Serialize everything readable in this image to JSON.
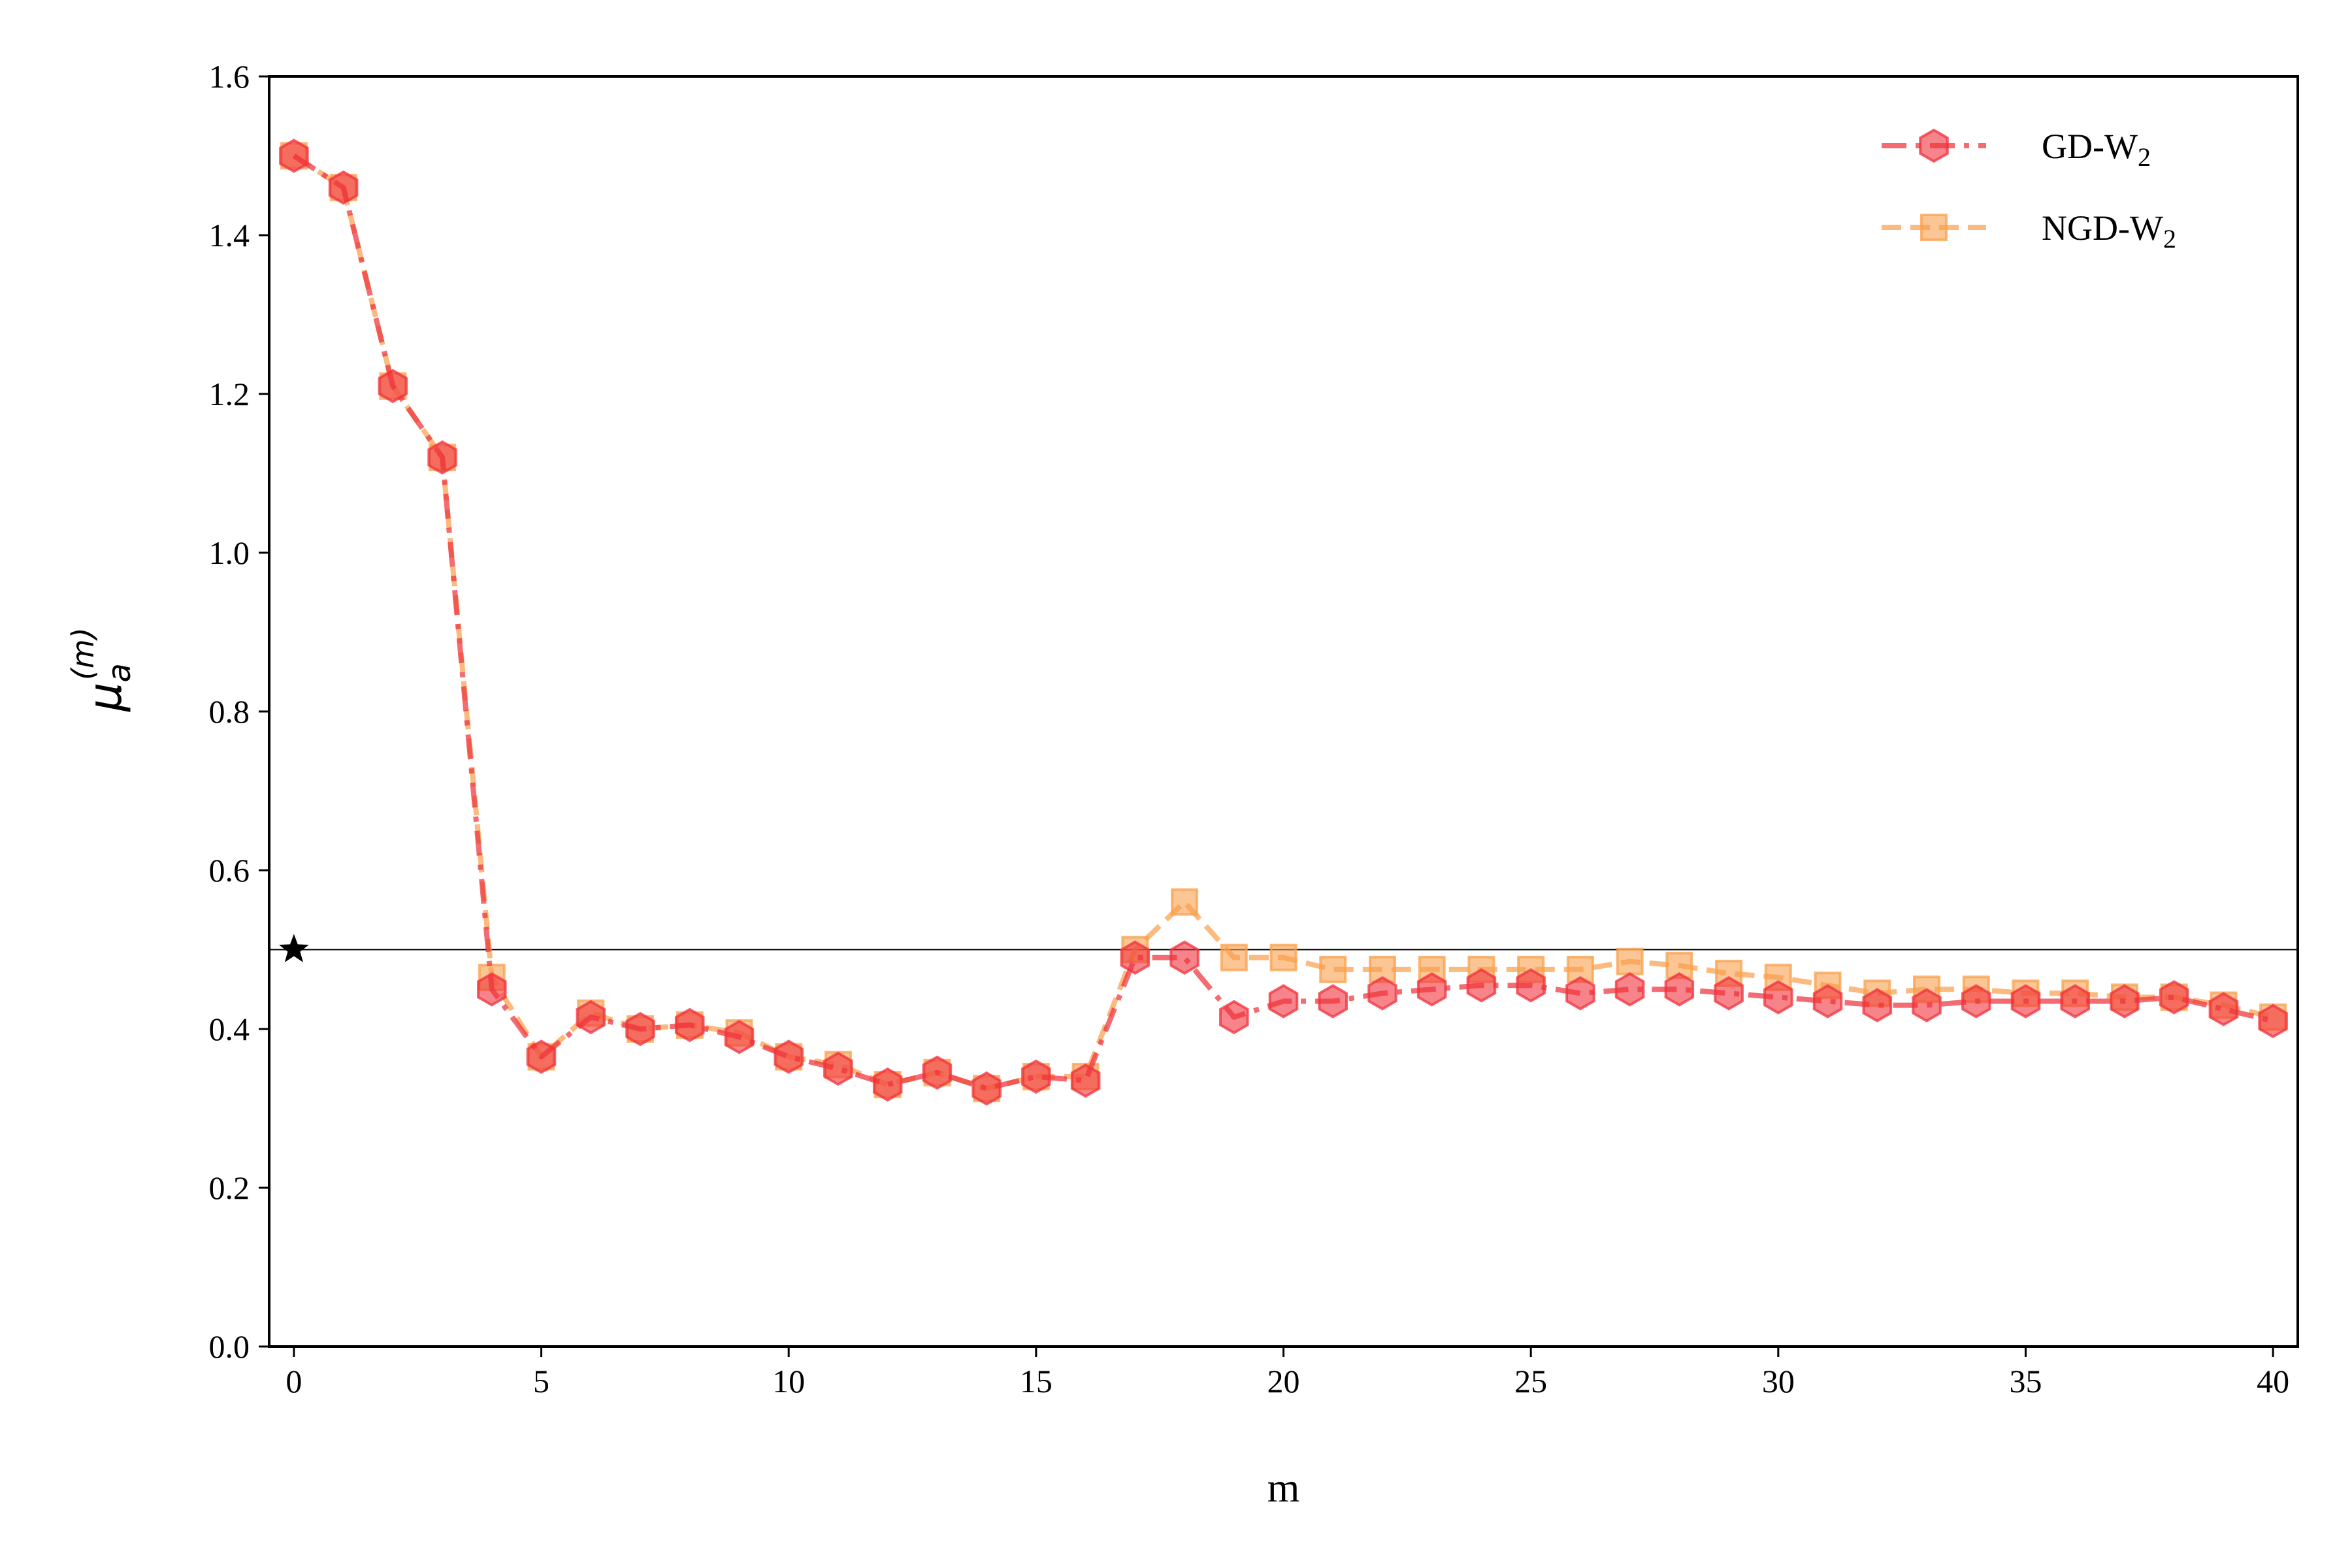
{
  "chart_data": {
    "type": "line",
    "xlabel": "m",
    "ylabel": {
      "base": "μ",
      "subscript": "a",
      "superscript": "(m)"
    },
    "xlim": [
      -0.5,
      40.5
    ],
    "ylim": [
      0.0,
      1.6
    ],
    "xticks": [
      "0",
      "5",
      "10",
      "15",
      "20",
      "25",
      "30",
      "35",
      "40"
    ],
    "yticks": [
      "0.0",
      "0.2",
      "0.4",
      "0.6",
      "0.8",
      "1.0",
      "1.2",
      "1.4",
      "1.6"
    ],
    "grid": false,
    "legend_position": "top-right",
    "reference_line": {
      "y": 0.5,
      "color": "#000000"
    },
    "true_value_marker": {
      "x": 0,
      "y": 0.5,
      "symbol": "star",
      "color": "#000000"
    },
    "x": [
      0,
      1,
      2,
      3,
      4,
      5,
      6,
      7,
      8,
      9,
      10,
      11,
      12,
      13,
      14,
      15,
      16,
      17,
      18,
      19,
      20,
      21,
      22,
      23,
      24,
      25,
      26,
      27,
      28,
      29,
      30,
      31,
      32,
      33,
      34,
      35,
      36,
      37,
      38,
      39,
      40
    ],
    "series": [
      {
        "name": "GD-W",
        "name_subscript": "2",
        "color": "#f0323c",
        "marker": "hexagon",
        "linestyle": "dashdot",
        "values": [
          1.5,
          1.46,
          1.21,
          1.12,
          0.45,
          0.365,
          0.415,
          0.4,
          0.405,
          0.39,
          0.365,
          0.35,
          0.33,
          0.345,
          0.325,
          0.34,
          0.335,
          0.49,
          0.49,
          0.415,
          0.435,
          0.435,
          0.445,
          0.45,
          0.455,
          0.455,
          0.445,
          0.45,
          0.45,
          0.445,
          0.44,
          0.435,
          0.43,
          0.43,
          0.435,
          0.435,
          0.435,
          0.435,
          0.44,
          0.425,
          0.41
        ]
      },
      {
        "name": "NGD-W",
        "name_subscript": "2",
        "color": "#f9a04c",
        "marker": "square",
        "linestyle": "dashed",
        "values": [
          1.5,
          1.46,
          1.21,
          1.12,
          0.465,
          0.365,
          0.42,
          0.4,
          0.405,
          0.395,
          0.365,
          0.355,
          0.33,
          0.345,
          0.325,
          0.34,
          0.34,
          0.5,
          0.56,
          0.49,
          0.49,
          0.475,
          0.475,
          0.475,
          0.475,
          0.475,
          0.475,
          0.485,
          0.48,
          0.47,
          0.465,
          0.455,
          0.445,
          0.45,
          0.45,
          0.445,
          0.445,
          0.44,
          0.44,
          0.43,
          0.415
        ]
      }
    ]
  }
}
